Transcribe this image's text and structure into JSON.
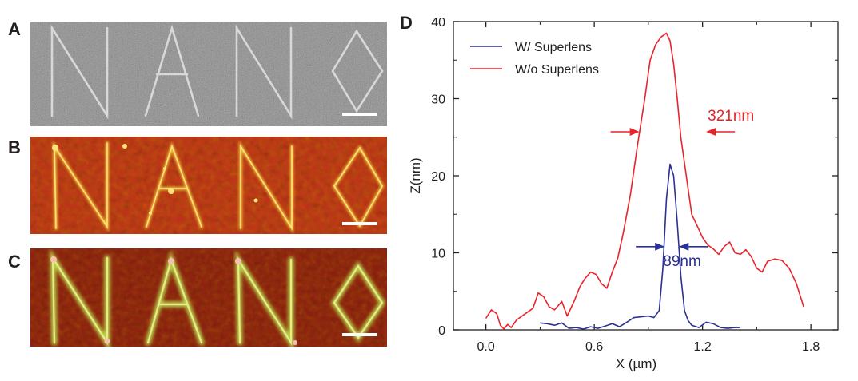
{
  "panels": {
    "a": {
      "label": "A",
      "letters": "NANO",
      "scalebar_color": "#ffffff",
      "bg": "#6e6e6e"
    },
    "b": {
      "label": "B",
      "letters": "NANO",
      "scalebar_color": "#ffffff",
      "bg": "#c2301c"
    },
    "c": {
      "label": "C",
      "letters": "NANO",
      "scalebar_color": "#ffffff",
      "bg": "#8c1b12"
    }
  },
  "chart_label": "D",
  "colors": {
    "with": "#2b3190",
    "without": "#e8242b",
    "axis": "#231f20"
  },
  "chart_data": {
    "type": "line",
    "xlabel": "X (µm)",
    "ylabel": "Z(nm)",
    "xlim": [
      -0.18,
      1.95
    ],
    "ylim": [
      0,
      40
    ],
    "xticks": [
      0.0,
      0.6,
      1.2,
      1.8
    ],
    "xtick_labels": [
      "0.0",
      "0.6",
      "1.2",
      "1.8"
    ],
    "yticks": [
      0,
      10,
      20,
      30,
      40
    ],
    "ytick_labels": [
      "0",
      "10",
      "20",
      "30",
      "40"
    ],
    "grid": false,
    "legend_position": "top-left",
    "series": [
      {
        "name": "W/ Superlens",
        "color": "#2b3190",
        "x": [
          0.3,
          0.34,
          0.38,
          0.42,
          0.46,
          0.5,
          0.54,
          0.58,
          0.62,
          0.66,
          0.7,
          0.74,
          0.78,
          0.82,
          0.86,
          0.9,
          0.93,
          0.96,
          0.98,
          1.0,
          1.02,
          1.04,
          1.06,
          1.08,
          1.1,
          1.12,
          1.14,
          1.18,
          1.22,
          1.26,
          1.3,
          1.34,
          1.38,
          1.41
        ],
        "y": [
          0.9,
          0.8,
          0.6,
          0.9,
          0.2,
          0.3,
          0.1,
          0.4,
          0.2,
          0.5,
          0.8,
          0.4,
          1.0,
          1.6,
          1.7,
          1.8,
          1.6,
          2.5,
          8.0,
          17.0,
          21.5,
          20.0,
          14.0,
          7.0,
          2.5,
          1.2,
          0.6,
          0.3,
          1.0,
          0.8,
          0.3,
          0.2,
          0.3,
          0.3
        ]
      },
      {
        "name": "W/o Superlens",
        "color": "#e8242b",
        "x": [
          0.0,
          0.03,
          0.06,
          0.08,
          0.1,
          0.12,
          0.14,
          0.17,
          0.2,
          0.23,
          0.26,
          0.29,
          0.32,
          0.35,
          0.38,
          0.42,
          0.45,
          0.49,
          0.52,
          0.55,
          0.58,
          0.61,
          0.64,
          0.67,
          0.7,
          0.73,
          0.76,
          0.8,
          0.84,
          0.88,
          0.91,
          0.94,
          0.97,
          1.0,
          1.02,
          1.04,
          1.06,
          1.08,
          1.11,
          1.14,
          1.17,
          1.2,
          1.23,
          1.26,
          1.29,
          1.32,
          1.35,
          1.38,
          1.41,
          1.44,
          1.47,
          1.5,
          1.53,
          1.56,
          1.6,
          1.64,
          1.68,
          1.72,
          1.76
        ],
        "y": [
          1.5,
          2.6,
          2.1,
          0.6,
          0.1,
          0.7,
          0.3,
          1.3,
          1.8,
          2.3,
          2.8,
          4.8,
          4.3,
          3.0,
          2.6,
          3.7,
          1.8,
          3.8,
          5.6,
          6.7,
          7.5,
          7.2,
          6.0,
          5.4,
          7.5,
          9.3,
          12.5,
          17.5,
          24.0,
          30.0,
          35.0,
          37.0,
          38.0,
          38.5,
          37.5,
          34.5,
          30.0,
          25.0,
          20.0,
          15.0,
          13.5,
          12.0,
          11.0,
          10.5,
          9.8,
          10.8,
          11.4,
          10.0,
          9.8,
          10.4,
          9.5,
          8.0,
          7.5,
          8.9,
          9.2,
          9.0,
          8.0,
          6.0,
          3.0
        ]
      }
    ],
    "annotations": [
      {
        "text": "321nm",
        "color": "#e8242b",
        "x_left": 0.85,
        "x_right": 1.22,
        "y": 25.7
      },
      {
        "text": "89nm",
        "color": "#2b3190",
        "x_left": 0.99,
        "x_right": 1.07,
        "y": 10.8
      }
    ]
  }
}
